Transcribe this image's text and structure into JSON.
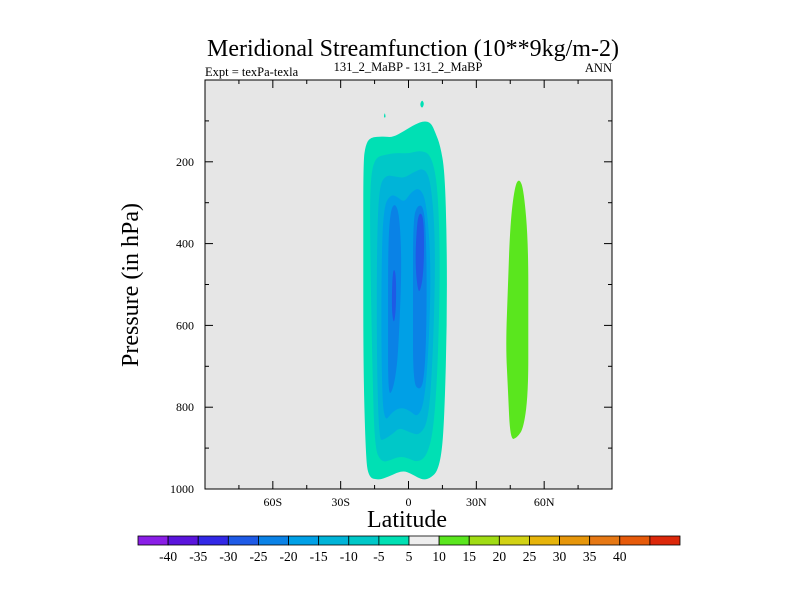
{
  "chart_data": {
    "type": "contour",
    "title": "Meridional Streamfunction (10**9kg/m-2)",
    "subtitle_left": "Expt = texPa-texla",
    "subtitle_center": "131_2_MaBP - 131_2_MaBP",
    "subtitle_right": "ANN",
    "xlabel": "Latitude",
    "ylabel": "Pressure (in hPa)",
    "xlim": [
      -90,
      90
    ],
    "ylim": [
      1000,
      0
    ],
    "xticks": [
      -60,
      -30,
      0,
      30,
      60
    ],
    "xtick_labels": [
      "60S",
      "30S",
      "0",
      "30N",
      "60N"
    ],
    "yticks": [
      200,
      400,
      600,
      800,
      1000
    ],
    "ytick_labels": [
      "200",
      "400",
      "600",
      "800",
      "1000"
    ],
    "background_color": "#e6e6e6",
    "regions": [
      {
        "level": -5,
        "color": "#00e0b4",
        "points": [
          [
            -18,
            972
          ],
          [
            -19,
            900
          ],
          [
            -20,
            700
          ],
          [
            -20,
            400
          ],
          [
            -20,
            200
          ],
          [
            -19,
            160
          ],
          [
            -17,
            140
          ],
          [
            -11,
            138
          ],
          [
            -7,
            140
          ],
          [
            -2,
            125
          ],
          [
            3,
            108
          ],
          [
            7,
            100
          ],
          [
            10,
            105
          ],
          [
            12,
            130
          ],
          [
            14,
            160
          ],
          [
            16,
            220
          ],
          [
            17,
            400
          ],
          [
            17,
            600
          ],
          [
            16,
            800
          ],
          [
            15,
            900
          ],
          [
            13,
            955
          ],
          [
            10,
            972
          ],
          [
            7,
            978
          ],
          [
            4,
            972
          ],
          [
            1,
            962
          ],
          [
            -2,
            956
          ],
          [
            -5,
            960
          ],
          [
            -9,
            970
          ],
          [
            -13,
            978
          ]
        ]
      },
      {
        "level": -5,
        "color": "#00e0b4",
        "points": [
          [
            -11,
            92
          ],
          [
            -10.5,
            78
          ],
          [
            -10,
            92
          ]
        ]
      },
      {
        "level": -5,
        "color": "#00e0b4",
        "points": [
          [
            5,
            60
          ],
          [
            6,
            48
          ],
          [
            7,
            58
          ],
          [
            6,
            70
          ]
        ]
      },
      {
        "level": -10,
        "color": "#00c8c8",
        "points": [
          [
            -15,
            900
          ],
          [
            -16,
            700
          ],
          [
            -17,
            400
          ],
          [
            -17,
            250
          ],
          [
            -15,
            190
          ],
          [
            -10,
            182
          ],
          [
            -5,
            178
          ],
          [
            0,
            180
          ],
          [
            5,
            172
          ],
          [
            10,
            182
          ],
          [
            13,
            260
          ],
          [
            14,
            450
          ],
          [
            13,
            700
          ],
          [
            11,
            860
          ],
          [
            8,
            920
          ],
          [
            4,
            935
          ],
          [
            0,
            925
          ],
          [
            -4,
            920
          ],
          [
            -8,
            930
          ],
          [
            -12,
            935
          ]
        ]
      },
      {
        "level": -15,
        "color": "#00b4d8",
        "points": [
          [
            -13,
            880
          ],
          [
            -14,
            700
          ],
          [
            -14,
            400
          ],
          [
            -13,
            260
          ],
          [
            -10,
            232
          ],
          [
            -6,
            236
          ],
          [
            -2,
            240
          ],
          [
            2,
            226
          ],
          [
            7,
            214
          ],
          [
            10,
            250
          ],
          [
            12,
            400
          ],
          [
            11,
            650
          ],
          [
            9,
            830
          ],
          [
            5,
            870
          ],
          [
            0,
            860
          ],
          [
            -4,
            850
          ],
          [
            -7,
            865
          ],
          [
            -11,
            880
          ]
        ]
      },
      {
        "level": -20,
        "color": "#00a0e6",
        "points": [
          [
            -11,
            840
          ],
          [
            -12,
            700
          ],
          [
            -12,
            450
          ],
          [
            -11,
            310
          ],
          [
            -8,
            280
          ],
          [
            -5,
            285
          ],
          [
            -2,
            300
          ],
          [
            1,
            275
          ],
          [
            5,
            262
          ],
          [
            8,
            300
          ],
          [
            10,
            450
          ],
          [
            9,
            650
          ],
          [
            7,
            790
          ],
          [
            4,
            825
          ],
          [
            1,
            810
          ],
          [
            -3,
            800
          ],
          [
            -7,
            810
          ]
        ]
      },
      {
        "level": -25,
        "color": "#0a82e6",
        "points": [
          [
            -9,
            770
          ],
          [
            -9,
            600
          ],
          [
            -9,
            400
          ],
          [
            -8,
            320
          ],
          [
            -6,
            300
          ],
          [
            -4,
            330
          ],
          [
            -3,
            450
          ],
          [
            -4,
            600
          ],
          [
            -5,
            700
          ],
          [
            -7,
            760
          ]
        ]
      },
      {
        "level": -25,
        "color": "#0a82e6",
        "points": [
          [
            2,
            740
          ],
          [
            2,
            550
          ],
          [
            2,
            340
          ],
          [
            4,
            305
          ],
          [
            7,
            310
          ],
          [
            8,
            420
          ],
          [
            8,
            600
          ],
          [
            7,
            730
          ],
          [
            5,
            760
          ]
        ]
      },
      {
        "level": -30,
        "color": "#1e5ae6",
        "points": [
          [
            3,
            450
          ],
          [
            3.5,
            370
          ],
          [
            4.5,
            325
          ],
          [
            6.5,
            330
          ],
          [
            7,
            400
          ],
          [
            6.5,
            480
          ],
          [
            5,
            520
          ],
          [
            4,
            510
          ]
        ]
      },
      {
        "level": -30,
        "color": "#1e5ae6",
        "points": [
          [
            -7.5,
            560
          ],
          [
            -7,
            460
          ],
          [
            -5.5,
            470
          ],
          [
            -5.5,
            560
          ],
          [
            -6.5,
            600
          ]
        ]
      },
      {
        "level": 10,
        "color": "#5ae61e",
        "points": [
          [
            45,
            880
          ],
          [
            44,
            760
          ],
          [
            43,
            650
          ],
          [
            44,
            500
          ],
          [
            45,
            350
          ],
          [
            47,
            260
          ],
          [
            49,
            240
          ],
          [
            51,
            270
          ],
          [
            53,
            400
          ],
          [
            53,
            600
          ],
          [
            53,
            760
          ],
          [
            51,
            850
          ],
          [
            48,
            875
          ]
        ]
      }
    ],
    "colorbar": {
      "labels": [
        "-40",
        "-35",
        "-30",
        "-25",
        "-20",
        "-15",
        "-10",
        "-5",
        "5",
        "10",
        "15",
        "20",
        "25",
        "30",
        "35",
        "40"
      ],
      "colors": [
        "#8a1ee6",
        "#5a14dc",
        "#3228e6",
        "#1e5ae6",
        "#0a82e6",
        "#00a0e6",
        "#00b4d8",
        "#00c8c8",
        "#00e0b4",
        "#eeeeee",
        "#5ae61e",
        "#a0dc14",
        "#d2d214",
        "#e6b40a",
        "#e6960a",
        "#e67814",
        "#e65a0a",
        "#dc280a"
      ]
    }
  }
}
